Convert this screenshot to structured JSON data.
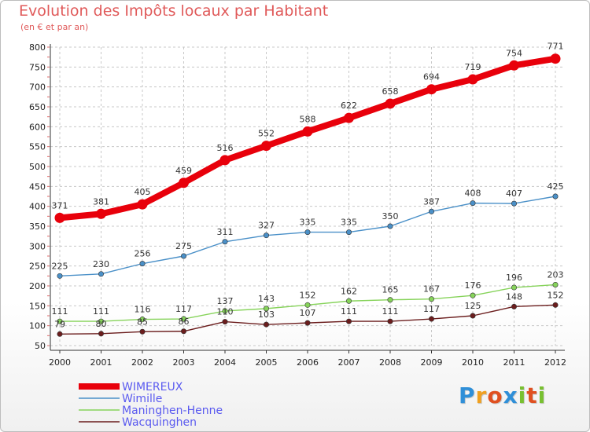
{
  "colors": {
    "title": "#e05a5a",
    "legend_text": "#5a5af0",
    "grid": "#c8c8c8",
    "axis_marks": "#e06a6a"
  },
  "chart_data": {
    "type": "line",
    "title": "Evolution des Impôts locaux par Habitant",
    "subtitle": "(en € et par an)",
    "x": [
      2000,
      2001,
      2002,
      2003,
      2004,
      2005,
      2006,
      2007,
      2008,
      2009,
      2010,
      2011,
      2012
    ],
    "ylim": [
      50,
      800
    ],
    "yticks": [
      50,
      100,
      150,
      200,
      250,
      300,
      350,
      400,
      450,
      500,
      550,
      600,
      650,
      700,
      750,
      800
    ],
    "grid": true,
    "legend_position": "bottom-left",
    "series": [
      {
        "name": "WIMEREUX",
        "color": "#e8000b",
        "values": [
          371,
          381,
          405,
          459,
          516,
          552,
          588,
          622,
          658,
          694,
          719,
          754,
          771
        ]
      },
      {
        "name": "Wimille",
        "color": "#4a90c8",
        "values": [
          225,
          230,
          256,
          275,
          311,
          327,
          335,
          335,
          350,
          387,
          408,
          407,
          425
        ]
      },
      {
        "name": "Maninghen-Henne",
        "color": "#86d35a",
        "values": [
          111,
          111,
          116,
          117,
          137,
          143,
          152,
          162,
          165,
          167,
          176,
          196,
          203
        ]
      },
      {
        "name": "Wacquinghen",
        "color": "#6b1d1d",
        "values": [
          79,
          80,
          85,
          86,
          110,
          103,
          107,
          111,
          111,
          117,
          125,
          148,
          152
        ]
      }
    ]
  },
  "logo": {
    "letters": [
      {
        "ch": "P",
        "color": "#2f8fd8"
      },
      {
        "ch": "r",
        "color": "#f0a020"
      },
      {
        "ch": "o",
        "color": "#e05020"
      },
      {
        "ch": "x",
        "color": "#2f8fd8"
      },
      {
        "ch": "i",
        "color": "#78c030"
      },
      {
        "ch": "t",
        "color": "#e05020"
      },
      {
        "ch": "i",
        "color": "#78c030"
      }
    ]
  }
}
